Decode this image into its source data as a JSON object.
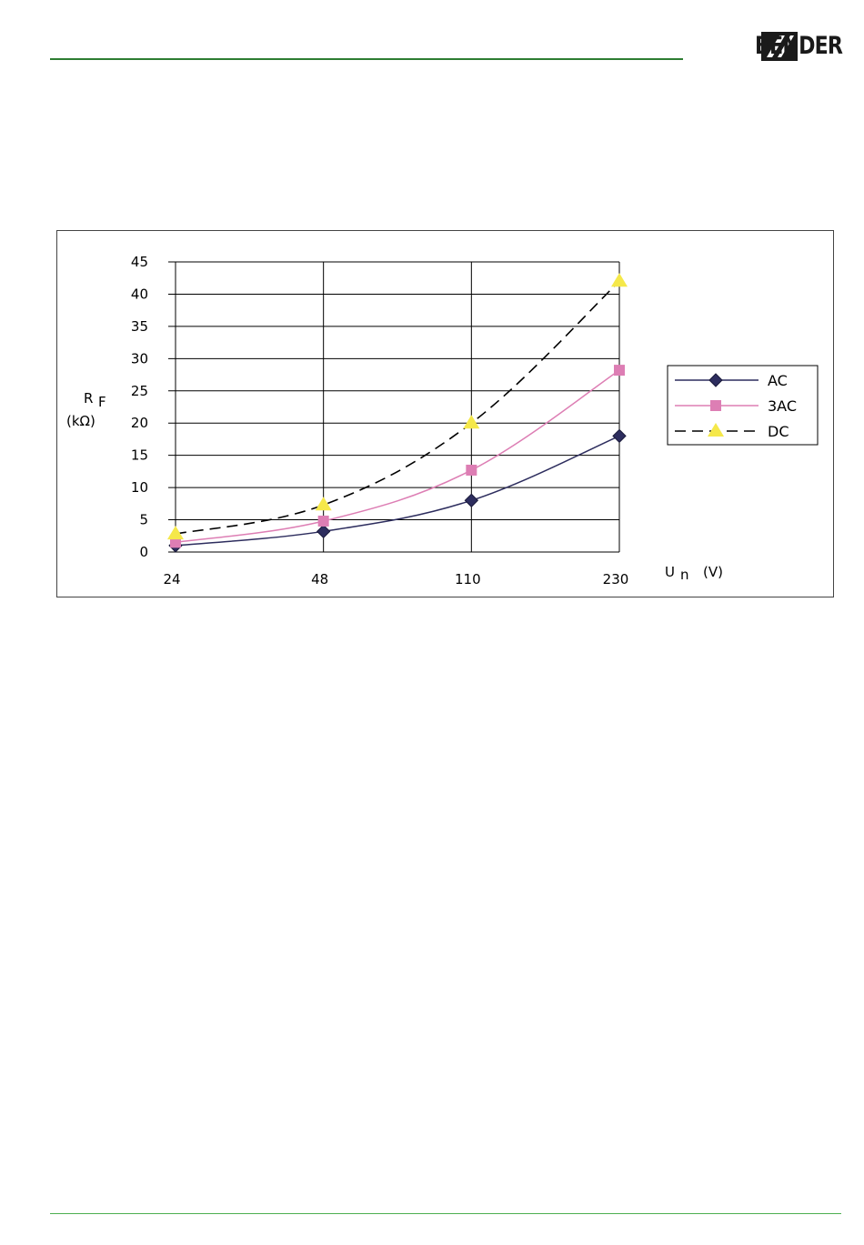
{
  "header": {
    "brand": "BENDER",
    "accent_color": "#2e7d32",
    "logo_icon": "bender-logo-icon"
  },
  "chart_data": {
    "type": "line",
    "title": "",
    "categories": [
      "24",
      "48",
      "110",
      "230"
    ],
    "xlabel_main": "U",
    "xlabel_sub": "n",
    "xlabel_unit": "(V)",
    "ylabel_main": "R",
    "ylabel_sub": "F",
    "ylabel_unit": "(kΩ)",
    "ylim": [
      0,
      45
    ],
    "yticks": [
      "0",
      "5",
      "10",
      "15",
      "20",
      "25",
      "30",
      "35",
      "40",
      "45"
    ],
    "grid": "vertical and horizontal major",
    "legend_position": "right",
    "series": [
      {
        "name": "AC",
        "values": [
          1,
          3.2,
          8,
          18
        ],
        "color": "#2d2d5e",
        "marker": "diamond",
        "dash": "solid"
      },
      {
        "name": "3AC",
        "values": [
          1.5,
          4.8,
          12.7,
          28.2
        ],
        "color": "#dd7eb4",
        "marker": "square",
        "dash": "solid"
      },
      {
        "name": "DC",
        "values": [
          2.8,
          7.3,
          20,
          42
        ],
        "color": "#000000",
        "marker": "triangle",
        "marker_color": "#f5e84a",
        "dash": "dashed"
      }
    ]
  }
}
